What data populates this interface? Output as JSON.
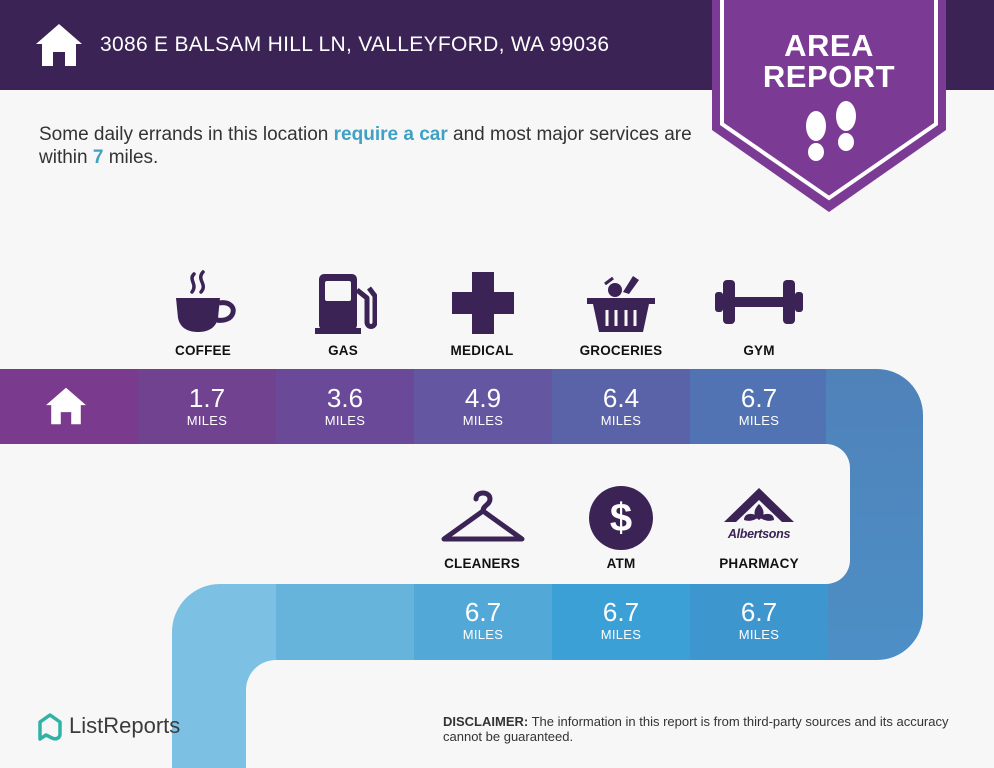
{
  "header": {
    "address": "3086 E BALSAM HILL LN, VALLEYFORD, WA 99036",
    "badge_line1": "AREA",
    "badge_line2": "REPORT",
    "colors": {
      "bar": "#3b2455",
      "badge": "#7b3a93"
    }
  },
  "intro": {
    "part1": "Some daily errands in this location ",
    "highlight1": "require a car",
    "part2": " and most major services are within ",
    "highlight2": "7",
    "part3": " miles."
  },
  "amenities_row1": [
    {
      "label": "COFFEE",
      "value": "1.7",
      "unit": "MILES",
      "icon": "coffee-cup-icon"
    },
    {
      "label": "GAS",
      "value": "3.6",
      "unit": "MILES",
      "icon": "gas-pump-icon"
    },
    {
      "label": "MEDICAL",
      "value": "4.9",
      "unit": "MILES",
      "icon": "medical-cross-icon"
    },
    {
      "label": "GROCERIES",
      "value": "6.4",
      "unit": "MILES",
      "icon": "grocery-basket-icon"
    },
    {
      "label": "GYM",
      "value": "6.7",
      "unit": "MILES",
      "icon": "dumbbell-icon"
    }
  ],
  "amenities_row2": [
    {
      "label": "CLEANERS",
      "value": "6.7",
      "unit": "MILES",
      "icon": "clothes-hanger-icon"
    },
    {
      "label": "ATM",
      "value": "6.7",
      "unit": "MILES",
      "icon": "dollar-coin-icon"
    },
    {
      "label": "PHARMACY",
      "value": "6.7",
      "unit": "MILES",
      "icon": "albertsons-logo-icon",
      "logo_text": "Albertsons"
    }
  ],
  "footer": {
    "brand": "ListReports",
    "disclaimer_label": "DISCLAIMER:",
    "disclaimer_text": " The information in this report is from third-party sources and its accuracy cannot be guaranteed."
  },
  "colors": {
    "icon": "#3b2455",
    "highlight": "#3fa1c4"
  }
}
